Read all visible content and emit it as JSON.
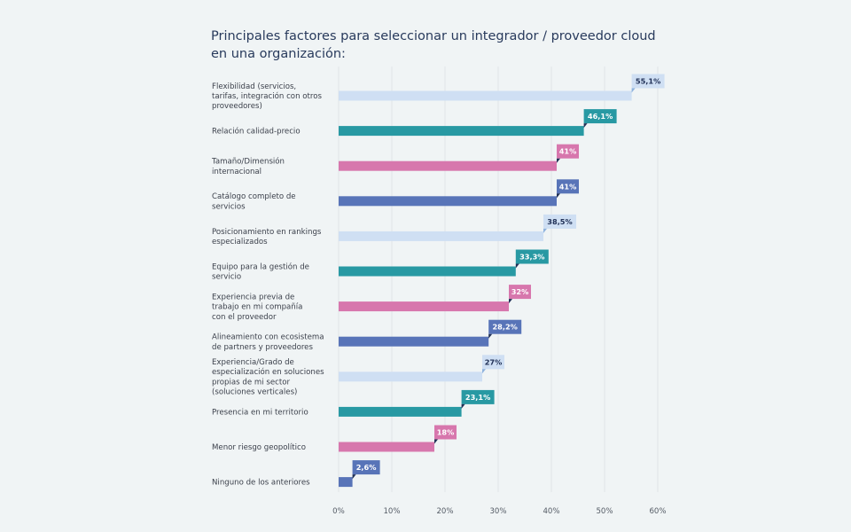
{
  "chart_data": {
    "type": "bar",
    "orientation": "horizontal",
    "title": "Principales factores para seleccionar un integrador / proveedor cloud en una organización:",
    "categories": [
      [
        "Flexibilidad (servicios,",
        "tarifas, integración con otros",
        "proveedores)"
      ],
      [
        "Relación calidad-precio"
      ],
      [
        "Tamaño/Dimensión",
        "internacional"
      ],
      [
        "Catálogo completo de",
        "servicios"
      ],
      [
        "Posicionamiento en rankings",
        "especializados"
      ],
      [
        "Equipo para la gestión de",
        "servicio"
      ],
      [
        "Experiencia previa de",
        "trabajo en mi compañía",
        "con el proveedor"
      ],
      [
        "Alineamiento con ecosistema",
        "de partners y proveedores"
      ],
      [
        "Experiencia/Grado de",
        "especialización en soluciones",
        "propias de mi sector",
        "(soluciones verticales)"
      ],
      [
        "Presencia en mi territorio"
      ],
      [
        "Menor riesgo geopolítico"
      ],
      [
        "Ninguno de los anteriores"
      ]
    ],
    "values": [
      55.1,
      46.1,
      41,
      41,
      38.5,
      33.3,
      32,
      28.2,
      27,
      23.1,
      18,
      2.6
    ],
    "data_labels": [
      "55,1%",
      "46,1%",
      "41%",
      "41%",
      "38,5%",
      "33,3%",
      "32%",
      "28,2%",
      "27%",
      "23,1%",
      "18%",
      "2,6%"
    ],
    "colors": [
      "#cfdff3",
      "#2899a3",
      "#d777ad",
      "#5874b8",
      "#cfdff3",
      "#2899a3",
      "#d777ad",
      "#5874b8",
      "#cfdff3",
      "#2899a3",
      "#d777ad",
      "#5874b8"
    ],
    "xlim": [
      0,
      60
    ],
    "xticks": [
      "0%",
      "10%",
      "20%",
      "30%",
      "40%",
      "50%",
      "60%"
    ],
    "grid": true,
    "xlabel": "",
    "ylabel": ""
  }
}
